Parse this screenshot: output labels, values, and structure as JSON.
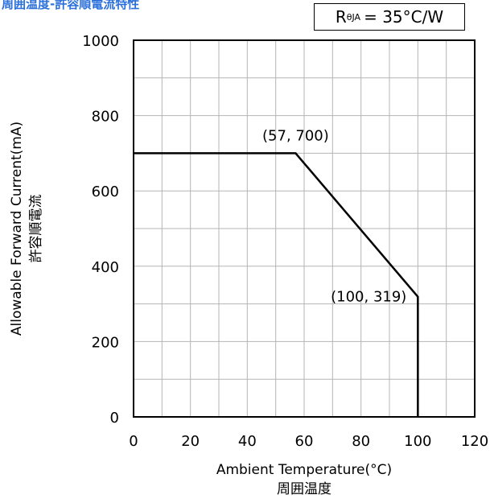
{
  "chart_data": {
    "type": "line",
    "title": "周囲温度-許容順電流特性",
    "legend_box": {
      "r_label": "R",
      "r_sub": "θJA",
      "value_text": "= 35°C/W"
    },
    "xlabel": "Ambient Temperature(°C)",
    "xlabel_sub": "周囲温度",
    "ylabel": "Allowable Forward Current(mA)",
    "ylabel_sub": "許容順電流",
    "xlim": [
      0,
      120
    ],
    "ylim": [
      0,
      1000
    ],
    "xticks": [
      0,
      20,
      40,
      60,
      80,
      100,
      120
    ],
    "yticks": [
      0,
      200,
      400,
      600,
      800,
      1000
    ],
    "grid": true,
    "series": [
      {
        "x": [
          0,
          57,
          100,
          100
        ],
        "y": [
          700,
          700,
          319,
          0
        ]
      }
    ],
    "annotations": [
      {
        "text": "(57, 700)",
        "x": 57,
        "y": 700
      },
      {
        "text": "(100, 319)",
        "x": 100,
        "y": 319
      }
    ]
  }
}
